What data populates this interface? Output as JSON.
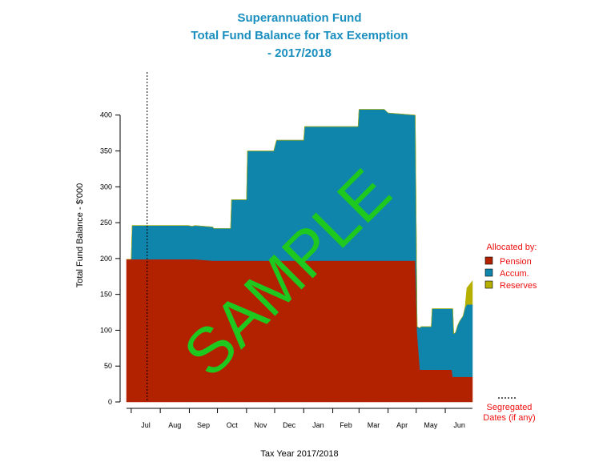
{
  "chart_data": {
    "type": "area",
    "stacked": true,
    "title_lines": [
      "Superannuation Fund",
      "Total Fund Balance for Tax Exemption",
      "- 2017/2018"
    ],
    "xlabel": "Tax Year 2017/2018",
    "ylabel": "Total Fund Balance - $'000",
    "month_labels": [
      "Jul",
      "Aug",
      "Sep",
      "Oct",
      "Nov",
      "Dec",
      "Jan",
      "Feb",
      "Mar",
      "Apr",
      "May",
      "Jun"
    ],
    "y_ticks": [
      0,
      50,
      100,
      150,
      200,
      250,
      300,
      350,
      400
    ],
    "ylim": [
      0,
      460
    ],
    "x_dates": [
      "2017-06-26",
      "2017-07-01",
      "2017-07-02",
      "2017-08-31",
      "2017-09-04",
      "2017-09-07",
      "2017-09-26",
      "2017-09-27",
      "2017-10-15",
      "2017-10-16",
      "2017-11-01",
      "2017-11-02",
      "2017-11-30",
      "2017-12-03",
      "2018-01-01",
      "2018-01-02",
      "2018-01-31",
      "2018-02-02",
      "2018-02-28",
      "2018-03-01",
      "2018-03-28",
      "2018-04-01",
      "2018-04-30",
      "2018-05-02",
      "2018-05-05",
      "2018-05-06",
      "2018-05-17",
      "2018-05-18",
      "2018-06-08",
      "2018-06-09",
      "2018-06-10",
      "2018-06-12",
      "2018-06-14",
      "2018-06-16",
      "2018-06-20",
      "2018-06-22",
      "2018-06-24",
      "2018-06-30"
    ],
    "series": [
      {
        "name": "Pension",
        "color": "#b22200",
        "values": [
          199,
          199,
          199,
          199,
          199,
          199,
          197,
          197,
          197,
          197,
          197,
          197,
          197,
          197,
          197,
          197,
          197,
          197,
          197,
          197,
          197,
          197,
          197,
          97,
          45,
          45,
          45,
          45,
          45,
          35,
          35,
          35,
          35,
          35,
          35,
          35,
          35,
          35
        ]
      },
      {
        "name": "Accum.",
        "color": "#0f85ab",
        "values": [
          0,
          0,
          47,
          47,
          46,
          47,
          47,
          45,
          45,
          85,
          85,
          153,
          153,
          168,
          168,
          187,
          187,
          187,
          187,
          211,
          211,
          206,
          203,
          8,
          58,
          60,
          60,
          85,
          85,
          95,
          60,
          62,
          71,
          77,
          85,
          96,
          101,
          101
        ]
      },
      {
        "name": "Reserves",
        "color": "#b5b000",
        "values": [
          0,
          0,
          0,
          0,
          0,
          0,
          0,
          0,
          0,
          0,
          0,
          0,
          0,
          0,
          0,
          0,
          0,
          0,
          0,
          0,
          0,
          0,
          0,
          0,
          0,
          0,
          0,
          0,
          0,
          0,
          0,
          0,
          0,
          0,
          0,
          0,
          23,
          33
        ]
      }
    ],
    "segregated_dates": [
      "2017-07-18"
    ],
    "legend": {
      "title": "Allocated by:",
      "entries": [
        "Pension",
        "Accum.",
        "Reserves"
      ],
      "placement": "right",
      "segregated_label_lines": [
        "Segregated",
        "Dates (if any)"
      ]
    },
    "watermark": "SAMPLE",
    "grid": false
  }
}
